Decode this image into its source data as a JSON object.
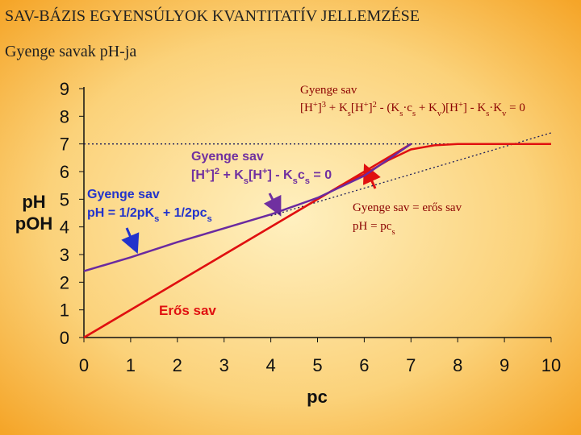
{
  "header": {
    "title": "SAV-BÁZIS EGYENSÚLYOK KVANTITATÍV JELLEMZÉSE",
    "subtitle": "Gyenge savak pH-ja"
  },
  "chart_data": {
    "type": "line",
    "x_label": "pc",
    "y_label": [
      "pH",
      "pOH"
    ],
    "xlim": [
      0,
      10
    ],
    "xticks": [
      0,
      1,
      2,
      3,
      4,
      5,
      6,
      7,
      8,
      9,
      10
    ],
    "ylim": [
      0,
      9
    ],
    "yticks": [
      0,
      1,
      2,
      3,
      4,
      5,
      6,
      7,
      8,
      9
    ],
    "series": [
      {
        "color": "#1a1a5a",
        "dash": "dotted",
        "x": [
          0,
          10
        ],
        "values": [
          7,
          7
        ]
      },
      {
        "color": "#1a1a5a",
        "dash": "dotted",
        "x": [
          4,
          10
        ],
        "values": [
          4.4,
          7.4
        ]
      },
      {
        "color": "#e01010",
        "dash": "solid",
        "x": [
          0,
          1,
          2,
          3,
          4,
          5,
          5.5,
          6,
          6.5,
          7,
          7.5,
          8,
          9,
          10
        ],
        "values": [
          0,
          1,
          2,
          3,
          4,
          5,
          5.5,
          5.9,
          6.4,
          6.8,
          6.95,
          7,
          7,
          7
        ]
      },
      {
        "color": "#e01010",
        "dash": "solid",
        "x": [
          0,
          7
        ],
        "values": [
          0,
          7
        ]
      },
      {
        "color": "#6a2aa0",
        "dash": "solid",
        "x": [
          0,
          1,
          2,
          3,
          4,
          5,
          6,
          7
        ],
        "values": [
          2.4,
          2.9,
          3.45,
          3.95,
          4.45,
          5.05,
          5.85,
          7
        ]
      }
    ],
    "annotations": [
      {
        "color": "#8b0000",
        "lines": [
          [
            "Gyenge sav"
          ],
          [
            "[H",
            {
              "text": "+",
              "pos": "sup"
            },
            "]",
            {
              "text": "3",
              "pos": "sup"
            },
            " + K",
            {
              "text": "s",
              "pos": "sub"
            },
            "[H",
            {
              "text": "+",
              "pos": "sup"
            },
            "]",
            {
              "text": "2",
              "pos": "sup"
            },
            " - (K",
            {
              "text": "s",
              "pos": "sub"
            },
            "·c",
            {
              "text": "s",
              "pos": "sub"
            },
            " + K",
            {
              "text": "v",
              "pos": "sub"
            },
            ")[H",
            {
              "text": "+",
              "pos": "sup"
            },
            "] - K",
            {
              "text": "s",
              "pos": "sub"
            },
            "·K",
            {
              "text": "v",
              "pos": "sub"
            },
            " = 0"
          ]
        ]
      },
      {
        "color": "#7030a0",
        "lines": [
          [
            "Gyenge sav"
          ],
          [
            "[H",
            {
              "text": "+",
              "pos": "sup"
            },
            "]",
            {
              "text": "2",
              "pos": "sup"
            },
            " + K",
            {
              "text": "s",
              "pos": "sub"
            },
            "[H",
            {
              "text": "+",
              "pos": "sup"
            },
            "] - K",
            {
              "text": "s",
              "pos": "sub"
            },
            "c",
            {
              "text": "s",
              "pos": "sub"
            },
            " = 0"
          ]
        ]
      },
      {
        "color": "#2233cc",
        "lines": [
          [
            "Gyenge sav"
          ],
          [
            "pH = 1/2pK",
            {
              "text": "s",
              "pos": "sub"
            },
            " + 1/2pc",
            {
              "text": "s",
              "pos": "sub"
            }
          ]
        ]
      },
      {
        "color": "#e01010",
        "lines": [
          [
            "Erős sav"
          ]
        ]
      },
      {
        "color": "#8b0000",
        "lines": [
          [
            "Gyenge sav = erős sav"
          ],
          [
            "pH = pc",
            {
              "text": "s",
              "pos": "sub"
            }
          ]
        ]
      }
    ]
  }
}
